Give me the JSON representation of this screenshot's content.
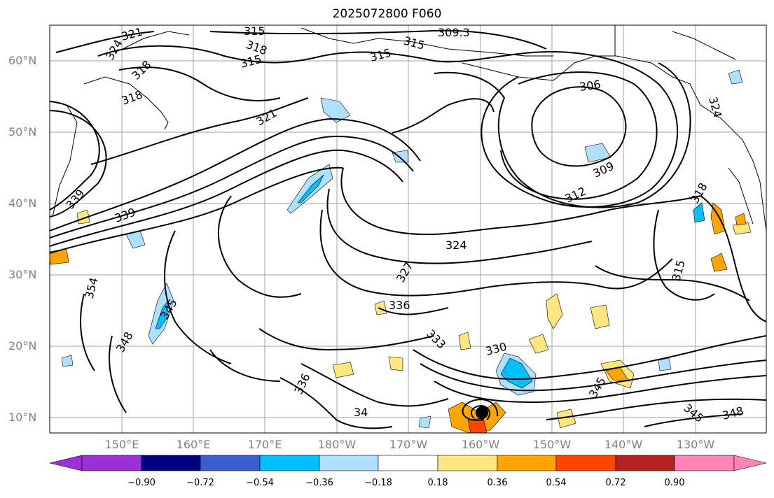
{
  "title": "2025072800 F060",
  "map": {
    "projection": "lat-lon",
    "grid": true,
    "latitude_labels": [
      "60°N",
      "50°N",
      "40°N",
      "30°N",
      "20°N",
      "10°N"
    ],
    "longitude_labels": [
      "150°E",
      "160°E",
      "170°E",
      "180°W",
      "170°W",
      "160°W",
      "150°W",
      "140°W",
      "130°W"
    ],
    "contour_labels": [
      "321",
      "315",
      "318",
      "309.3",
      "324",
      "306",
      "309",
      "312",
      "339",
      "327",
      "336",
      "333",
      "330",
      "354",
      "345",
      "348",
      "315",
      "324",
      "336",
      "34"
    ],
    "marker": "tropical-cyclone-center",
    "colors": {
      "contour": "#000000",
      "coastline": "#000000",
      "grid": "#a0a0a0"
    }
  },
  "colorbar": {
    "tick_labels": [
      "−0.90",
      "−0.72",
      "−0.54",
      "−0.36",
      "−0.18",
      "0.18",
      "0.36",
      "0.54",
      "0.72",
      "0.90"
    ],
    "colors": [
      "#9b30d9",
      "#000080",
      "#3a5fcd",
      "#00bfff",
      "#b0e0ff",
      "#ffffff",
      "#ffe680",
      "#ffa500",
      "#ff4500",
      "#b22222",
      "#ff85b5"
    ],
    "extend": "both"
  }
}
